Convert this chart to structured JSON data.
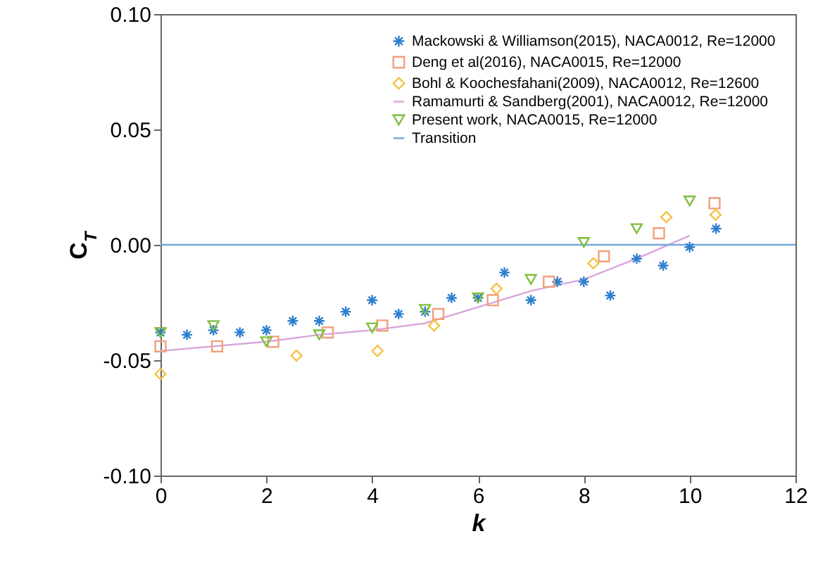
{
  "chart_data": {
    "type": "scatter",
    "xlabel": "k",
    "ylabel": "C$_{T}$",
    "xlim": [
      0,
      12
    ],
    "xticks": [
      0,
      2,
      4,
      6,
      8,
      10,
      12
    ],
    "ylim": [
      -0.1,
      0.1
    ],
    "yticks": [
      {
        "value": -0.1,
        "label": "-0.10"
      },
      {
        "value": -0.05,
        "label": "-0.05"
      },
      {
        "value": 0,
        "label": "0.00"
      },
      {
        "value": 0.05,
        "label": "0.05"
      },
      {
        "value": 0.1,
        "label": "0.10"
      }
    ],
    "legend": "top right",
    "grid": false,
    "series": [
      {
        "name": "Mackowski & Williamson(2015), NACA0012, Re=12000",
        "color": "#2f7fcf",
        "marker": "cross",
        "x": [
          0,
          0.5,
          1,
          1.5,
          2,
          2.5,
          3,
          3.5,
          4,
          4.5,
          5,
          5.5,
          6,
          6.5,
          7,
          7.5,
          8,
          8.5,
          9,
          9.5,
          10,
          10.5
        ],
        "values": [
          -0.038,
          -0.039,
          -0.037,
          -0.038,
          -0.037,
          -0.033,
          -0.033,
          -0.029,
          -0.024,
          -0.03,
          -0.029,
          -0.023,
          -0.023,
          -0.012,
          -0.024,
          -0.016,
          -0.016,
          -0.022,
          -0.006,
          -0.009,
          -0.001,
          0.007
        ]
      },
      {
        "name": "Deng et al(2016), NACA0015, Re=12000",
        "color": "#f0a07c",
        "marker": "square",
        "x": [
          0,
          1.07,
          2.13,
          3.16,
          4.19,
          5.25,
          6.28,
          7.34,
          8.38,
          9.42,
          10.47
        ],
        "values": [
          -0.044,
          -0.044,
          -0.042,
          -0.038,
          -0.035,
          -0.03,
          -0.024,
          -0.016,
          -0.005,
          0.005,
          0.018
        ]
      },
      {
        "name": "Bohl & Koochesfahani(2009), NACA0012, Re=12600",
        "color": "#f5c242",
        "marker": "diamond",
        "x": [
          0,
          2.57,
          4.1,
          5.17,
          6.35,
          8.18,
          9.56,
          10.49
        ],
        "values": [
          -0.056,
          -0.048,
          -0.046,
          -0.035,
          -0.019,
          -0.008,
          0.012,
          0.013
        ]
      },
      {
        "name": "Ramamurti & Sandberg(2001), NACA0012, Re=12000",
        "color": "#d9a6da",
        "type": "line",
        "x": [
          0,
          1,
          2,
          3,
          4,
          5,
          6,
          7,
          8,
          9,
          10
        ],
        "values": [
          -0.046,
          -0.044,
          -0.042,
          -0.039,
          -0.037,
          -0.034,
          -0.027,
          -0.02,
          -0.015,
          -0.006,
          0.004
        ]
      },
      {
        "name": "Present work, NACA0015, Re=12000",
        "color": "#7fbf3f",
        "marker": "triangle",
        "x": [
          0,
          1,
          2,
          3,
          4,
          5,
          6,
          7,
          8,
          9,
          10
        ],
        "values": [
          -0.038,
          -0.035,
          -0.042,
          -0.039,
          -0.036,
          -0.028,
          -0.023,
          -0.015,
          0.001,
          0.007,
          0.019
        ]
      },
      {
        "name": "Transition",
        "color": "#6fa8dc",
        "type": "line",
        "x": [
          0,
          12
        ],
        "values": [
          0,
          0
        ]
      }
    ]
  }
}
